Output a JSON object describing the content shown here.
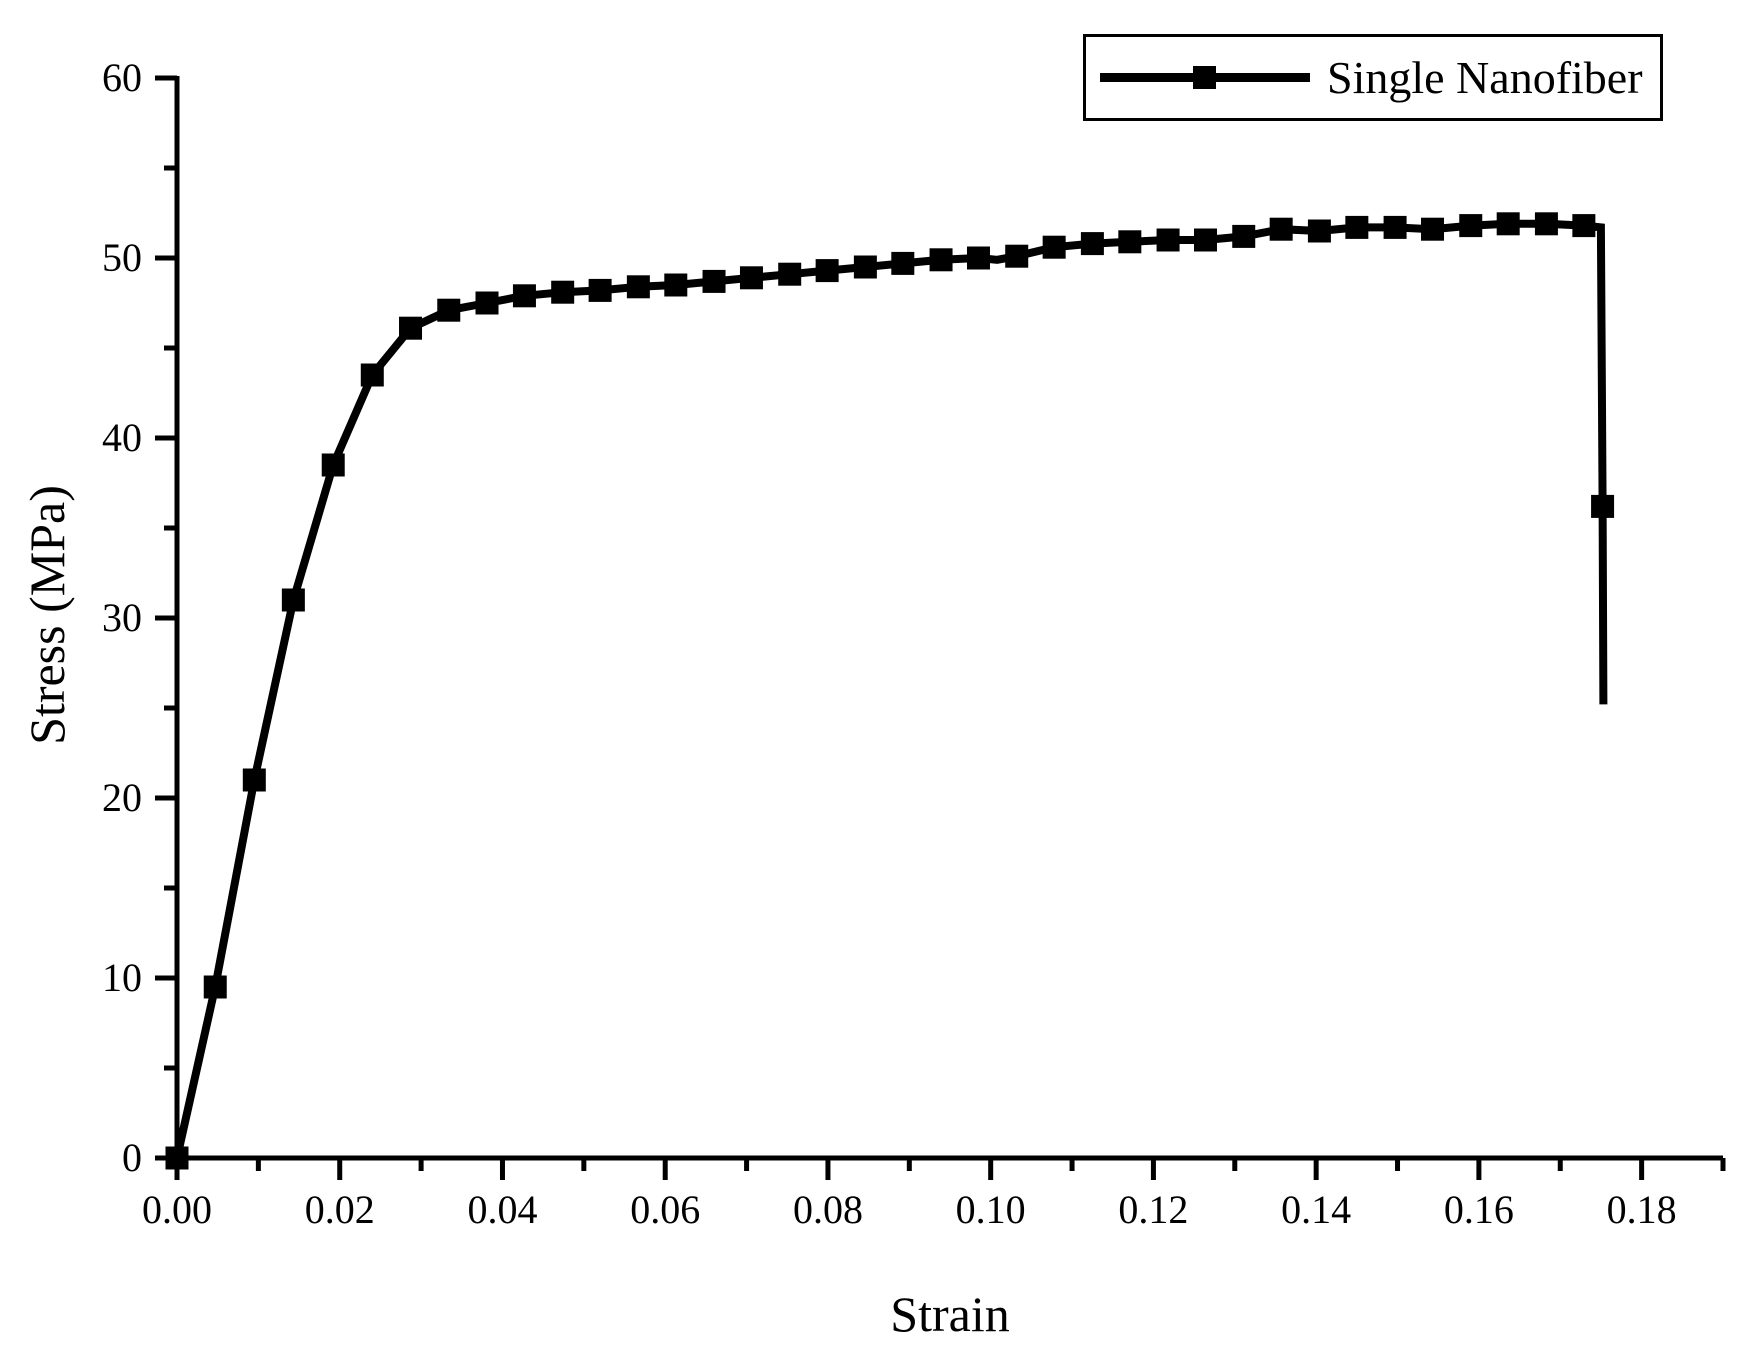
{
  "figure": {
    "background": "#ffffff",
    "line_color": "#000000",
    "text_color": "#000000"
  },
  "chart_data": {
    "type": "line",
    "title": "",
    "xlabel": "Strain",
    "ylabel": "Stress (MPa)",
    "xlim": [
      0,
      0.19
    ],
    "ylim": [
      0,
      60
    ],
    "grid": false,
    "legend": {
      "position": "top-right",
      "border": true,
      "marker_icon": "filled-square-on-line"
    },
    "x_axis": {
      "major_ticks": [
        0.0,
        0.02,
        0.04,
        0.06,
        0.08,
        0.1,
        0.12,
        0.14,
        0.16,
        0.18
      ],
      "tick_labels": [
        "0.00",
        "0.02",
        "0.04",
        "0.06",
        "0.08",
        "0.10",
        "0.12",
        "0.14",
        "0.16",
        "0.18"
      ],
      "minor_ticks": [
        0.01,
        0.03,
        0.05,
        0.07,
        0.09,
        0.11,
        0.13,
        0.15,
        0.17,
        0.19
      ]
    },
    "y_axis": {
      "major_ticks": [
        0,
        10,
        20,
        30,
        40,
        50,
        60
      ],
      "tick_labels": [
        "0",
        "10",
        "20",
        "30",
        "40",
        "50",
        "60"
      ],
      "minor_ticks": [
        5,
        15,
        25,
        35,
        45,
        55
      ]
    },
    "series": [
      {
        "name": "Single Nanofiber",
        "color": "#000000",
        "marker": "filled-square",
        "points": [
          [
            0.0,
            0.0,
            1
          ],
          [
            0.0047,
            9.5,
            1
          ],
          [
            0.0095,
            21.0,
            1
          ],
          [
            0.0143,
            31.0,
            1
          ],
          [
            0.0192,
            38.5,
            1
          ],
          [
            0.024,
            43.5,
            1
          ],
          [
            0.0287,
            46.1,
            1
          ],
          [
            0.0334,
            47.1,
            1
          ],
          [
            0.0381,
            47.5,
            1
          ],
          [
            0.0427,
            47.9,
            1
          ],
          [
            0.0474,
            48.1,
            1
          ],
          [
            0.052,
            48.2,
            1
          ],
          [
            0.0567,
            48.4,
            1
          ],
          [
            0.0613,
            48.5,
            1
          ],
          [
            0.066,
            48.7,
            1
          ],
          [
            0.0706,
            48.9,
            1
          ],
          [
            0.0753,
            49.1,
            1
          ],
          [
            0.0799,
            49.3,
            1
          ],
          [
            0.0846,
            49.5,
            1
          ],
          [
            0.0892,
            49.7,
            1
          ],
          [
            0.0939,
            49.9,
            1
          ],
          [
            0.0985,
            50.0,
            1
          ],
          [
            0.1008,
            49.9,
            0
          ],
          [
            0.1032,
            50.1,
            1
          ],
          [
            0.1078,
            50.6,
            1
          ],
          [
            0.1125,
            50.8,
            1
          ],
          [
            0.1171,
            50.9,
            1
          ],
          [
            0.1218,
            51.0,
            1
          ],
          [
            0.1264,
            51.0,
            1
          ],
          [
            0.1311,
            51.2,
            1
          ],
          [
            0.1357,
            51.6,
            1
          ],
          [
            0.1404,
            51.5,
            1
          ],
          [
            0.145,
            51.7,
            1
          ],
          [
            0.1497,
            51.7,
            1
          ],
          [
            0.1543,
            51.6,
            1
          ],
          [
            0.159,
            51.8,
            1
          ],
          [
            0.1636,
            51.9,
            1
          ],
          [
            0.1683,
            51.9,
            1
          ],
          [
            0.1729,
            51.8,
            1
          ],
          [
            0.175,
            51.7,
            0
          ],
          [
            0.1752,
            36.2,
            1
          ],
          [
            0.1753,
            25.2,
            0
          ]
        ]
      }
    ]
  }
}
